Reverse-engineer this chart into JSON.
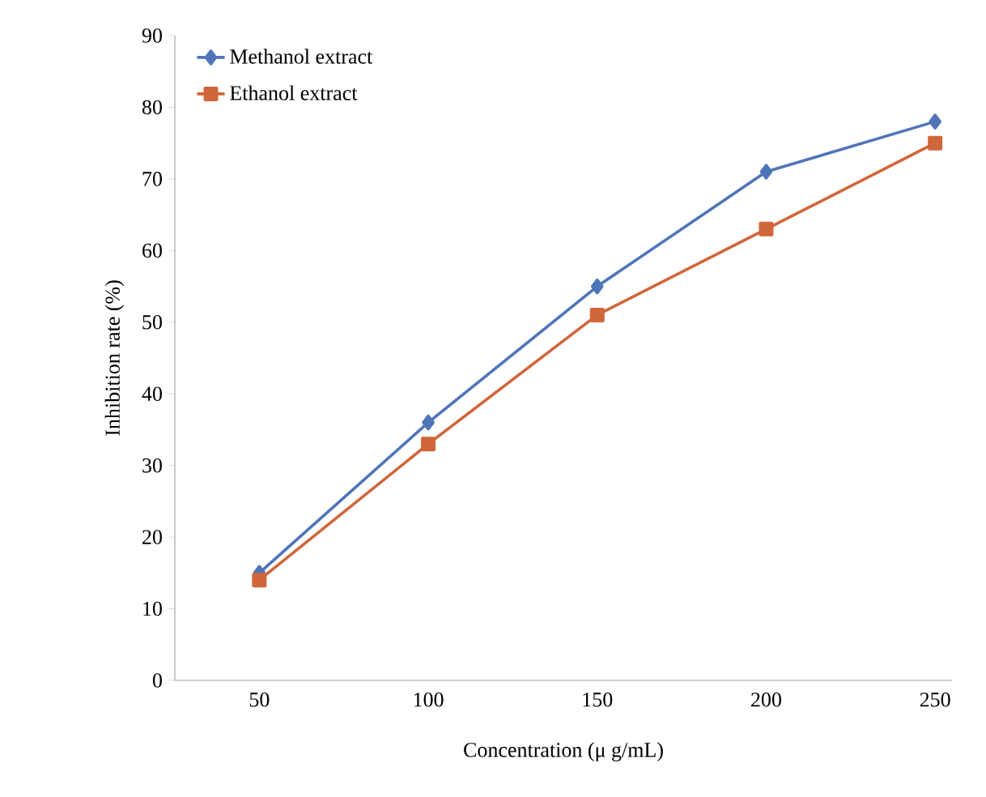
{
  "chart_data": {
    "type": "line",
    "xlabel": "Concentration (μ g/mL)",
    "ylabel": "Inhibition rate (%)",
    "categories": [
      "50",
      "100",
      "150",
      "200",
      "250"
    ],
    "series": [
      {
        "name": "Methanol extract",
        "color": "#4f75b8",
        "marker": "diamond",
        "values": [
          15,
          36,
          55,
          71,
          78
        ]
      },
      {
        "name": "Ethanol extract",
        "color": "#d0663a",
        "marker": "square",
        "values": [
          14,
          33,
          51,
          63,
          75
        ]
      }
    ],
    "ylim": [
      0,
      90
    ],
    "yticks": [
      0,
      10,
      20,
      30,
      40,
      50,
      60,
      70,
      80,
      90
    ],
    "grid": false,
    "legend": "top left",
    "line_style": "solid"
  }
}
